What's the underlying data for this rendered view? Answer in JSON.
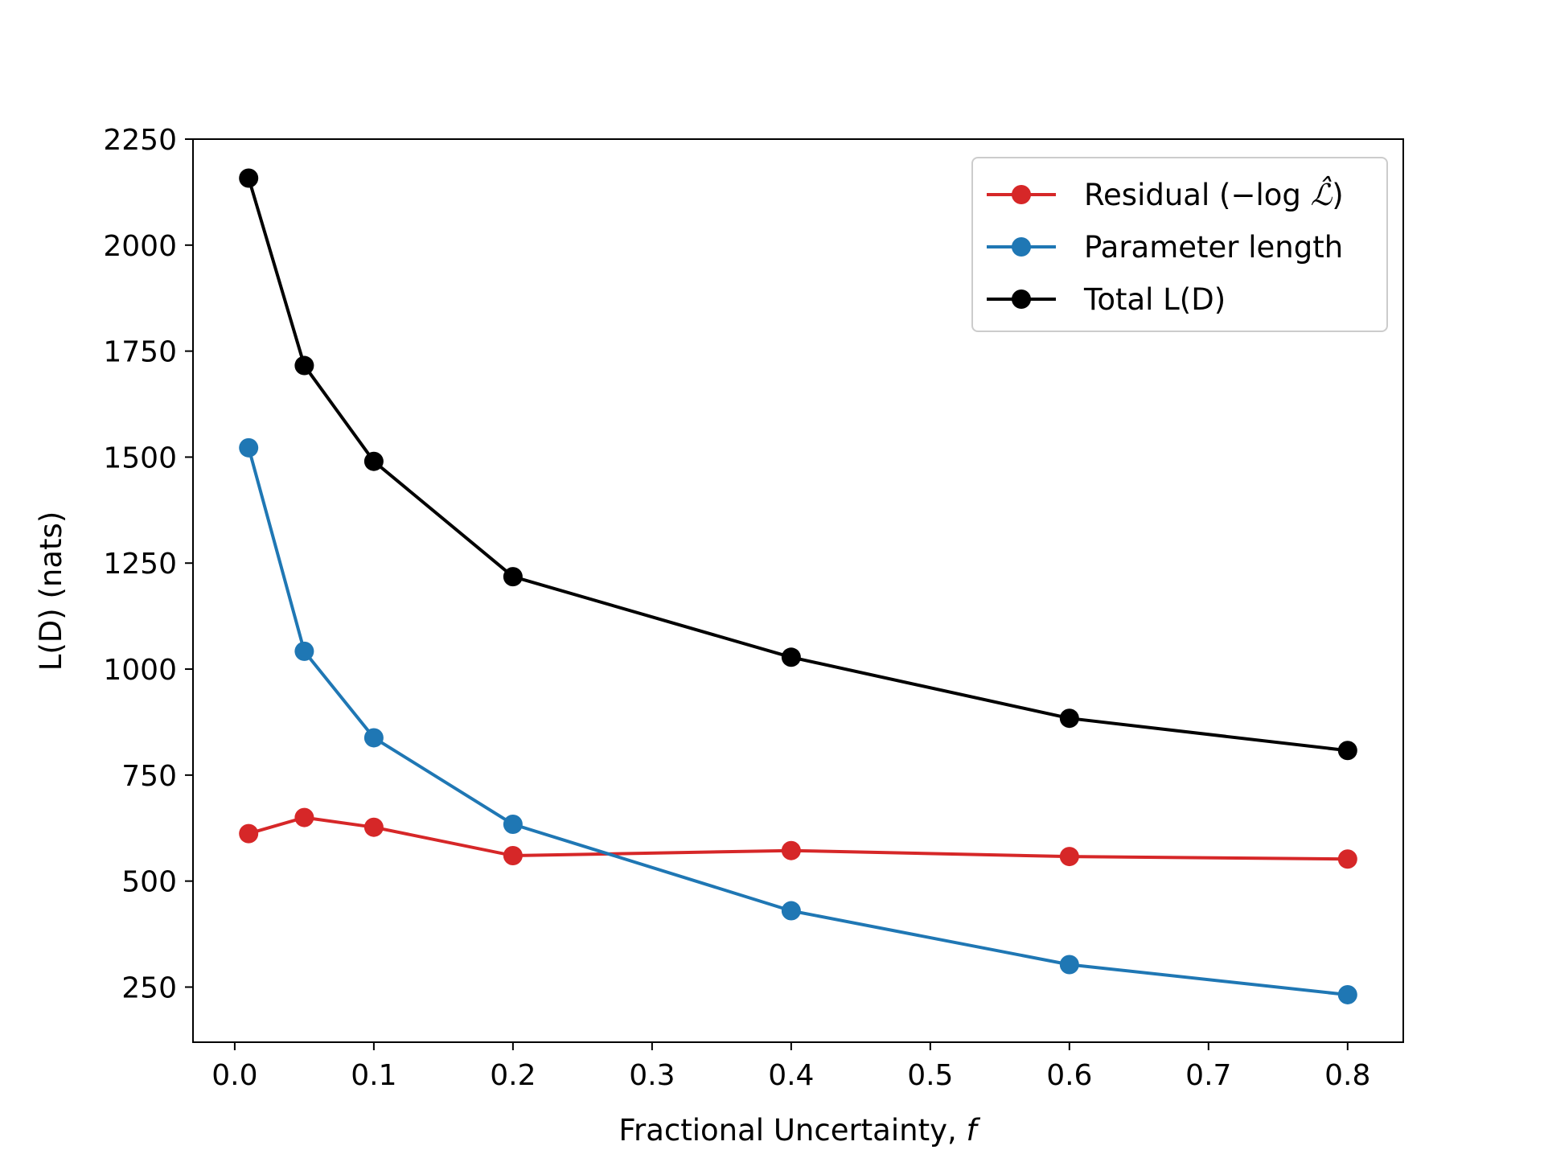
{
  "chart_data": {
    "type": "line",
    "title": "",
    "xlabel": "Fractional Uncertainty, ",
    "xlabel_symbol": "f",
    "ylabel": "L(D) (nats)",
    "xlim": [
      -0.03,
      0.84
    ],
    "ylim": [
      120,
      2250
    ],
    "xticks": [
      0.0,
      0.1,
      0.2,
      0.3,
      0.4,
      0.5,
      0.6,
      0.7,
      0.8
    ],
    "xtick_labels": [
      "0.0",
      "0.1",
      "0.2",
      "0.3",
      "0.4",
      "0.5",
      "0.6",
      "0.7",
      "0.8"
    ],
    "yticks": [
      250,
      500,
      750,
      1000,
      1250,
      1500,
      1750,
      2000,
      2250
    ],
    "ytick_labels": [
      "250",
      "500",
      "750",
      "1000",
      "1250",
      "1500",
      "1750",
      "2000",
      "2250"
    ],
    "x": [
      0.01,
      0.05,
      0.1,
      0.2,
      0.4,
      0.6,
      0.8
    ],
    "series": [
      {
        "name": "Residual",
        "legend_prefix": "Residual (−log ",
        "legend_symbol": "ℒ̂",
        "legend_suffix": ")",
        "color": "#d62728",
        "values": [
          612,
          650,
          627,
          560,
          572,
          558,
          552
        ]
      },
      {
        "name": "Parameter length",
        "legend_prefix": "Parameter length",
        "legend_symbol": "",
        "legend_suffix": "",
        "color": "#1f77b4",
        "values": [
          1522,
          1042,
          838,
          634,
          430,
          303,
          232
        ]
      },
      {
        "name": "Total L(D)",
        "legend_prefix": "Total L(D)",
        "legend_symbol": "",
        "legend_suffix": "",
        "color": "#000000",
        "values": [
          2158,
          1716,
          1490,
          1218,
          1028,
          884,
          808
        ]
      }
    ],
    "grid": false,
    "legend_position": "top-right"
  }
}
